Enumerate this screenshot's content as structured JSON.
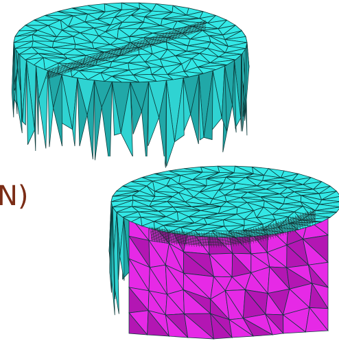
{
  "label_fragment": {
    "text": "N)",
    "color": "#7b2d16"
  },
  "colors": {
    "background": "#ffffff",
    "mesh_surface": "#33e8e6",
    "mesh_side": "#2fd3d2",
    "mesh_shadow": "#21a8a8",
    "mesh_edge": "#0b3a3a",
    "cut_surface": "#e629e6",
    "cut_shadow": "#b316b3",
    "refined_band": "#1d2b2b"
  },
  "meshes": [
    {
      "name": "upper-mesh",
      "state": "intact",
      "refined_region": "crack-line"
    },
    {
      "name": "lower-mesh",
      "state": "sectioned",
      "refined_region": "crack-front",
      "sectioned_face": "magenta"
    }
  ]
}
